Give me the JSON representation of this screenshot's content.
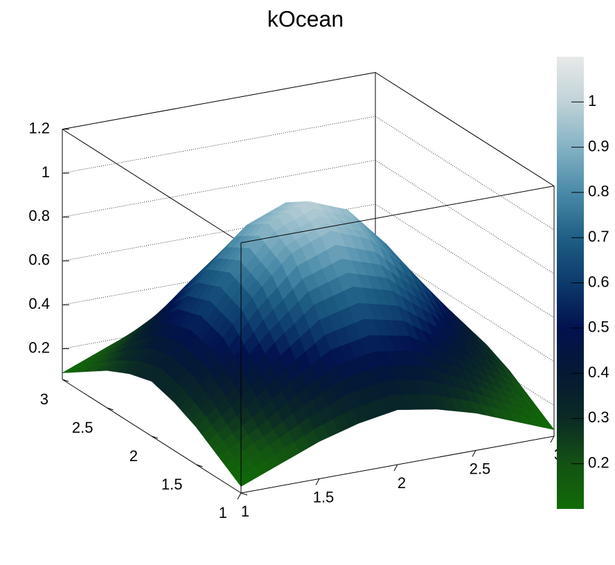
{
  "chart_data": {
    "type": "surface",
    "title": "kOcean",
    "x": [
      1,
      1.25,
      1.5,
      1.75,
      2,
      2.25,
      2.5,
      2.75,
      3
    ],
    "y": [
      1,
      1.25,
      1.5,
      1.75,
      2,
      2.25,
      2.5,
      2.75,
      3
    ],
    "z": [
      [
        0.09,
        0.16,
        0.23,
        0.28,
        0.31,
        0.28,
        0.23,
        0.16,
        0.09
      ],
      [
        0.16,
        0.26,
        0.38,
        0.48,
        0.51,
        0.48,
        0.38,
        0.26,
        0.16
      ],
      [
        0.23,
        0.38,
        0.55,
        0.69,
        0.74,
        0.69,
        0.55,
        0.38,
        0.23
      ],
      [
        0.28,
        0.48,
        0.69,
        0.86,
        0.93,
        0.86,
        0.69,
        0.48,
        0.28
      ],
      [
        0.31,
        0.51,
        0.74,
        0.93,
        1.0,
        0.93,
        0.74,
        0.51,
        0.31
      ],
      [
        0.28,
        0.48,
        0.69,
        0.86,
        0.93,
        0.86,
        0.69,
        0.48,
        0.28
      ],
      [
        0.23,
        0.38,
        0.55,
        0.69,
        0.74,
        0.69,
        0.55,
        0.38,
        0.23
      ],
      [
        0.16,
        0.26,
        0.38,
        0.48,
        0.51,
        0.48,
        0.38,
        0.26,
        0.16
      ],
      [
        0.09,
        0.16,
        0.23,
        0.28,
        0.31,
        0.28,
        0.23,
        0.16,
        0.09
      ]
    ],
    "xlim": [
      1,
      3
    ],
    "ylim": [
      1,
      3
    ],
    "zlim": [
      0.06,
      1.2
    ],
    "xticks": [
      1,
      1.5,
      2,
      2.5,
      3
    ],
    "yticks": [
      1,
      1.5,
      2,
      2.5,
      3
    ],
    "zticks": [
      0.2,
      0.4,
      0.6,
      0.8,
      1,
      1.2
    ],
    "colorbar": {
      "lim": [
        0.1,
        1.1
      ],
      "ticks": [
        0.2,
        0.3,
        0.4,
        0.5,
        0.6,
        0.7,
        0.8,
        0.9,
        1
      ]
    },
    "palette": [
      "#106a06",
      "#145214",
      "#0b2a25",
      "#041a34",
      "#02124f",
      "#0c3a6c",
      "#1f5f85",
      "#4a8aa8",
      "#84b2c4",
      "#c0d3d8",
      "#e8e9e9"
    ],
    "grid": true
  }
}
